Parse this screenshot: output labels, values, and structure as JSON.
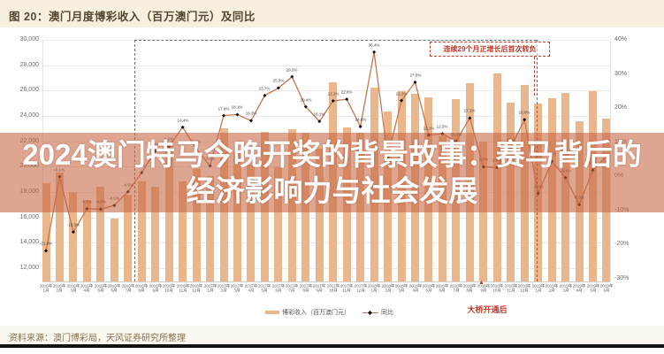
{
  "title": "图 20：澳门月度博彩收入（百万澳门元）及同比",
  "annotation_box": "连续29个月正增长后首次转负",
  "bridge_note": "大桥开通后",
  "bridge_arrow": "▲",
  "overlay": {
    "line1": "2024澳门特马今晚开奖的背景故事：赛马背后的",
    "line2": "经济影响力与社会发展"
  },
  "legend": {
    "bars": "博彩收入（百万澳门元）",
    "line": "同比"
  },
  "source": "资料来源：澳门博彩局，天风证券研究所整理",
  "colors": {
    "bar": "#eab78d",
    "line": "#c8784e",
    "marker": "#111111",
    "accent_red": "#c23a2b",
    "banner_tint": "#c86442",
    "title_bg": "#f7f0df"
  },
  "chart_data": {
    "type": "bar+line",
    "title": "澳门月度博彩收入（百万澳门元）及同比",
    "categories": [
      "2016年1月",
      "2016年2月",
      "2016年3月",
      "2016年4月",
      "2016年5月",
      "2016年6月",
      "2016年7月",
      "2016年8月",
      "2016年9月",
      "2016年10月",
      "2016年11月",
      "2016年12月",
      "2017年1月",
      "2017年2月",
      "2017年3月",
      "2017年4月",
      "2017年5月",
      "2017年6月",
      "2017年7月",
      "2017年8月",
      "2017年9月",
      "2017年10月",
      "2017年11月",
      "2017年12月",
      "2018年1月",
      "2018年2月",
      "2018年3月",
      "2018年4月",
      "2018年5月",
      "2018年6月",
      "2018年7月",
      "2018年8月",
      "2018年9月",
      "2018年10月",
      "2018年11月",
      "2018年12月",
      "2019年1月",
      "2019年2月",
      "2019年3月",
      "2019年4月",
      "2019年5月",
      "2019年6月"
    ],
    "series": [
      {
        "name": "博彩收入（百万澳门元）",
        "type": "bar",
        "values": [
          18683,
          19521,
          17980,
          17340,
          18389,
          15885,
          17773,
          18837,
          18435,
          21811,
          18826,
          19796,
          19255,
          22988,
          21184,
          20164,
          22743,
          19923,
          22966,
          22676,
          21408,
          26630,
          23073,
          22691,
          26265,
          24312,
          25951,
          25746,
          25488,
          22492,
          25327,
          26559,
          21952,
          27328,
          25027,
          26468,
          24942,
          25370,
          25840,
          23588,
          25952,
          23812
        ]
      },
      {
        "name": "同比",
        "type": "line",
        "values": [
          -21.8,
          -0.1,
          -16.3,
          -9.5,
          -9.6,
          -8.5,
          -4.5,
          1.1,
          7.4,
          8.8,
          14.4,
          8.0,
          3.1,
          17.8,
          18.1,
          16.3,
          23.7,
          25.9,
          29.2,
          20.4,
          16.1,
          22.1,
          22.6,
          14.6,
          36.4,
          5.7,
          22.2,
          27.6,
          12.1,
          12.5,
          10.3,
          17.1,
          2.8,
          2.6,
          8.5,
          16.6,
          -5.0,
          4.4,
          -0.4,
          -8.3,
          1.8,
          5.9
        ]
      }
    ],
    "left_axis": {
      "min": 12000,
      "max": 30000,
      "step": 2000
    },
    "right_axis": {
      "min": -30,
      "max": 40,
      "step": 10,
      "format": "percent"
    },
    "markers": {
      "streak_start": "2016年8月",
      "first_negative": "2019年1月",
      "bridge_open": "2018年10月"
    },
    "grid": true,
    "legend_position": "bottom"
  }
}
